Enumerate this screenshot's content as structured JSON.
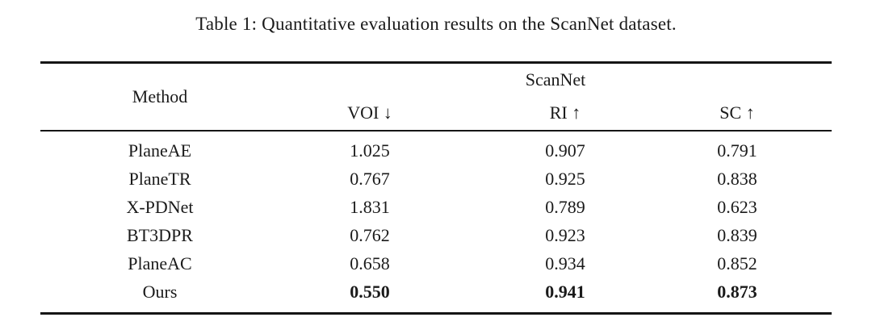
{
  "caption": "Table 1: Quantitative evaluation results on the ScanNet dataset.",
  "table": {
    "header": {
      "method": "Method",
      "group": "ScanNet",
      "metrics": [
        "VOI ↓",
        "RI ↑",
        "SC ↑"
      ]
    },
    "rows": [
      {
        "method": "PlaneAE",
        "voi": "1.025",
        "ri": "0.907",
        "sc": "0.791",
        "bold": false
      },
      {
        "method": "PlaneTR",
        "voi": "0.767",
        "ri": "0.925",
        "sc": "0.838",
        "bold": false
      },
      {
        "method": "X-PDNet",
        "voi": "1.831",
        "ri": "0.789",
        "sc": "0.623",
        "bold": false
      },
      {
        "method": "BT3DPR",
        "voi": "0.762",
        "ri": "0.923",
        "sc": "0.839",
        "bold": false
      },
      {
        "method": "PlaneAC",
        "voi": "0.658",
        "ri": "0.934",
        "sc": "0.852",
        "bold": false
      },
      {
        "method": "Ours",
        "voi": "0.550",
        "ri": "0.941",
        "sc": "0.873",
        "bold": true
      }
    ]
  }
}
